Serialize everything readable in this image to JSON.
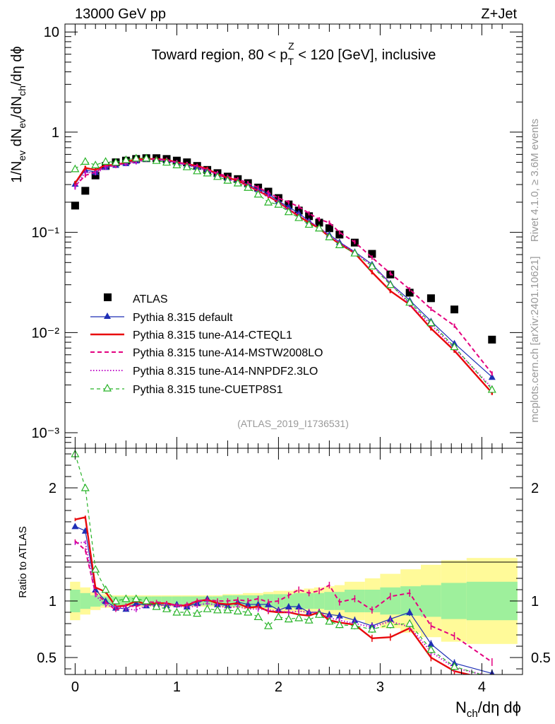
{
  "header": {
    "left": "13000 GeV pp",
    "right": "Z+Jet"
  },
  "side": {
    "rivet": "Rivet 4.1.0, ≥ 3.6M events",
    "mcplots": "mcplots.cern.ch [arXiv:2401.10621]"
  },
  "chart_data": [
    {
      "type": "line",
      "panel": "main",
      "title": "Toward region, 80 < p_T^Z < 120 [GeV], inclusive",
      "title_parts": {
        "pre": "Toward region, 80 < p",
        "sup": "Z",
        "sub": "T",
        "post": " < 120 [GeV], inclusive"
      },
      "ylabel": "1/N_ev dN_ev/dN_ch/dη dϕ",
      "yscale": "log",
      "ylim": [
        0.0007,
        12
      ],
      "xlim": [
        -0.1,
        4.4
      ],
      "y_tick_labels": [
        "10",
        "1",
        "10⁻¹",
        "10⁻²",
        "10⁻³"
      ],
      "analysis_tag": "(ATLAS_2019_I1736531)",
      "legend_position": "bottom-left",
      "x": [
        0.0,
        0.1,
        0.2,
        0.3,
        0.4,
        0.5,
        0.6,
        0.7,
        0.8,
        0.9,
        1.0,
        1.1,
        1.2,
        1.3,
        1.4,
        1.5,
        1.6,
        1.7,
        1.8,
        1.9,
        2.0,
        2.1,
        2.2,
        2.3,
        2.4,
        2.5,
        2.6,
        2.75,
        2.92,
        3.1,
        3.29,
        3.5,
        3.73,
        4.1
      ],
      "series": [
        {
          "name": "ATLAS",
          "values": [
            0.185,
            0.26,
            0.37,
            0.46,
            0.5,
            0.52,
            0.54,
            0.55,
            0.55,
            0.54,
            0.52,
            0.5,
            0.46,
            0.42,
            0.39,
            0.36,
            0.34,
            0.31,
            0.28,
            0.255,
            0.22,
            0.19,
            0.165,
            0.145,
            0.125,
            0.11,
            0.095,
            0.079,
            0.061,
            0.038,
            0.025,
            0.022,
            0.017,
            0.0085
          ]
        },
        {
          "name": "Pythia 8.315 default",
          "values": [
            0.305,
            0.42,
            0.4,
            0.45,
            0.47,
            0.49,
            0.52,
            0.54,
            0.53,
            0.52,
            0.49,
            0.47,
            0.45,
            0.42,
            0.38,
            0.35,
            0.33,
            0.3,
            0.27,
            0.245,
            0.205,
            0.18,
            0.155,
            0.13,
            0.11,
            0.095,
            0.08,
            0.064,
            0.048,
            0.031,
            0.021,
            0.013,
            0.0078,
            0.0036
          ]
        },
        {
          "name": "Pythia 8.315 tune-A14-CTEQL1",
          "values": [
            0.31,
            0.44,
            0.42,
            0.47,
            0.47,
            0.5,
            0.54,
            0.54,
            0.54,
            0.53,
            0.5,
            0.48,
            0.46,
            0.43,
            0.38,
            0.35,
            0.33,
            0.29,
            0.26,
            0.23,
            0.2,
            0.17,
            0.145,
            0.125,
            0.11,
            0.09,
            0.077,
            0.062,
            0.04,
            0.026,
            0.019,
            0.011,
            0.0066,
            0.0025
          ]
        },
        {
          "name": "Pythia 8.315 tune-A14-MSTW2008LO",
          "values": [
            0.29,
            0.37,
            0.4,
            0.46,
            0.46,
            0.5,
            0.51,
            0.54,
            0.54,
            0.53,
            0.5,
            0.48,
            0.46,
            0.42,
            0.39,
            0.36,
            0.34,
            0.31,
            0.28,
            0.25,
            0.22,
            0.2,
            0.18,
            0.155,
            0.135,
            0.125,
            0.1,
            0.08,
            0.056,
            0.039,
            0.027,
            0.0172,
            0.0117,
            0.0039
          ]
        },
        {
          "name": "Pythia 8.315 tune-A14-NNPDF2.3LO",
          "values": [
            0.28,
            0.4,
            0.39,
            0.44,
            0.47,
            0.48,
            0.5,
            0.53,
            0.53,
            0.52,
            0.5,
            0.47,
            0.44,
            0.41,
            0.38,
            0.34,
            0.32,
            0.29,
            0.26,
            0.235,
            0.2,
            0.17,
            0.15,
            0.13,
            0.112,
            0.093,
            0.079,
            0.063,
            0.047,
            0.031,
            0.019,
            0.012,
            0.007,
            0.0028
          ]
        },
        {
          "name": "Pythia 8.315 tune-CUETP8S1",
          "values": [
            0.43,
            0.51,
            0.47,
            0.51,
            0.5,
            0.53,
            0.55,
            0.55,
            0.52,
            0.5,
            0.47,
            0.45,
            0.41,
            0.39,
            0.36,
            0.33,
            0.31,
            0.28,
            0.24,
            0.2,
            0.19,
            0.16,
            0.14,
            0.12,
            0.11,
            0.09,
            0.075,
            0.062,
            0.046,
            0.03,
            0.02,
            0.0125,
            0.0072,
            0.0027
          ]
        }
      ]
    },
    {
      "type": "line",
      "panel": "ratio",
      "ylabel": "Ratio to ATLAS",
      "xlabel": "N_ch/dη dϕ",
      "ylim": [
        0.35,
        2.35
      ],
      "xlim": [
        -0.1,
        4.4
      ],
      "y_tick_labels": [
        "2",
        "1",
        "0.5"
      ],
      "x_tick_labels": [
        "0",
        "1",
        "2",
        "3",
        "4"
      ],
      "x": [
        0.0,
        0.1,
        0.2,
        0.3,
        0.4,
        0.5,
        0.6,
        0.7,
        0.8,
        0.9,
        1.0,
        1.1,
        1.2,
        1.3,
        1.4,
        1.5,
        1.6,
        1.7,
        1.8,
        1.9,
        2.0,
        2.1,
        2.2,
        2.3,
        2.4,
        2.5,
        2.6,
        2.75,
        2.92,
        3.1,
        3.29,
        3.5,
        3.73,
        4.1
      ],
      "bin_edges": [
        -0.05,
        0.05,
        0.15,
        0.25,
        0.35,
        0.45,
        0.55,
        0.65,
        0.75,
        0.85,
        0.95,
        1.05,
        1.15,
        1.25,
        1.35,
        1.45,
        1.55,
        1.65,
        1.75,
        1.85,
        1.95,
        2.05,
        2.15,
        2.25,
        2.35,
        2.45,
        2.55,
        2.65,
        2.85,
        3.0,
        3.2,
        3.4,
        3.6,
        3.85,
        4.35
      ],
      "band_stat": [
        0.1,
        0.07,
        0.05,
        0.04,
        0.04,
        0.04,
        0.04,
        0.04,
        0.04,
        0.04,
        0.04,
        0.04,
        0.04,
        0.04,
        0.04,
        0.05,
        0.05,
        0.05,
        0.05,
        0.06,
        0.06,
        0.06,
        0.07,
        0.07,
        0.07,
        0.08,
        0.08,
        0.1,
        0.1,
        0.12,
        0.13,
        0.14,
        0.16,
        0.17
      ],
      "band_total": [
        0.17,
        0.12,
        0.08,
        0.06,
        0.05,
        0.05,
        0.05,
        0.05,
        0.05,
        0.05,
        0.05,
        0.05,
        0.05,
        0.05,
        0.05,
        0.06,
        0.06,
        0.07,
        0.07,
        0.08,
        0.09,
        0.09,
        0.1,
        0.11,
        0.12,
        0.13,
        0.14,
        0.17,
        0.2,
        0.24,
        0.28,
        0.32,
        0.36,
        0.38
      ],
      "series": [
        {
          "name": "Pythia 8.315 default",
          "values": [
            1.66,
            1.62,
            1.1,
            1.0,
            0.94,
            0.93,
            0.98,
            0.96,
            0.97,
            0.96,
            0.97,
            0.95,
            0.98,
            1.02,
            0.97,
            0.96,
            0.99,
            0.97,
            0.97,
            0.97,
            0.92,
            0.95,
            0.95,
            0.9,
            0.9,
            0.88,
            0.87,
            0.83,
            0.78,
            0.84,
            0.9,
            0.62,
            0.45,
            0.36
          ]
        },
        {
          "name": "Pythia 8.315 tune-A14-CTEQL1",
          "values": [
            1.72,
            1.74,
            1.12,
            1.08,
            0.95,
            0.96,
            1.0,
            0.97,
            0.98,
            0.98,
            0.96,
            0.96,
            1.0,
            1.01,
            0.98,
            0.97,
            0.98,
            0.94,
            0.95,
            0.91,
            0.9,
            0.9,
            0.88,
            0.87,
            0.9,
            0.83,
            0.81,
            0.79,
            0.67,
            0.68,
            0.76,
            0.5,
            0.38,
            0.3
          ]
        },
        {
          "name": "Pythia 8.315 tune-A14-MSTW2008LO",
          "values": [
            1.53,
            1.45,
            1.07,
            0.99,
            0.92,
            0.96,
            0.95,
            0.99,
            0.99,
            0.98,
            0.96,
            0.97,
            1.0,
            1.01,
            1.0,
            1.0,
            1.01,
            1.0,
            1.02,
            0.99,
            1.0,
            1.05,
            1.1,
            1.07,
            1.09,
            1.14,
            0.99,
            1.02,
            0.92,
            1.04,
            1.07,
            0.78,
            0.69,
            0.46
          ]
        },
        {
          "name": "Pythia 8.315 tune-A14-NNPDF2.3LO",
          "values": [
            1.51,
            1.52,
            1.05,
            0.96,
            0.95,
            0.93,
            0.92,
            0.96,
            0.96,
            0.96,
            0.96,
            0.94,
            0.96,
            0.98,
            0.96,
            0.94,
            0.95,
            0.93,
            0.93,
            0.92,
            0.91,
            0.9,
            0.91,
            0.9,
            0.9,
            0.85,
            0.83,
            0.8,
            0.77,
            0.82,
            0.77,
            0.55,
            0.41,
            0.33
          ]
        },
        {
          "name": "Pythia 8.315 tune-CUETP8S1",
          "values": [
            2.3,
            2.0,
            1.28,
            1.1,
            1.0,
            1.02,
            1.02,
            1.0,
            0.95,
            0.93,
            0.9,
            0.9,
            0.89,
            0.93,
            0.92,
            0.92,
            0.91,
            0.9,
            0.86,
            0.78,
            0.86,
            0.84,
            0.85,
            0.83,
            0.88,
            0.82,
            0.79,
            0.78,
            0.75,
            0.79,
            0.8,
            0.57,
            0.42,
            0.32
          ]
        }
      ]
    }
  ]
}
